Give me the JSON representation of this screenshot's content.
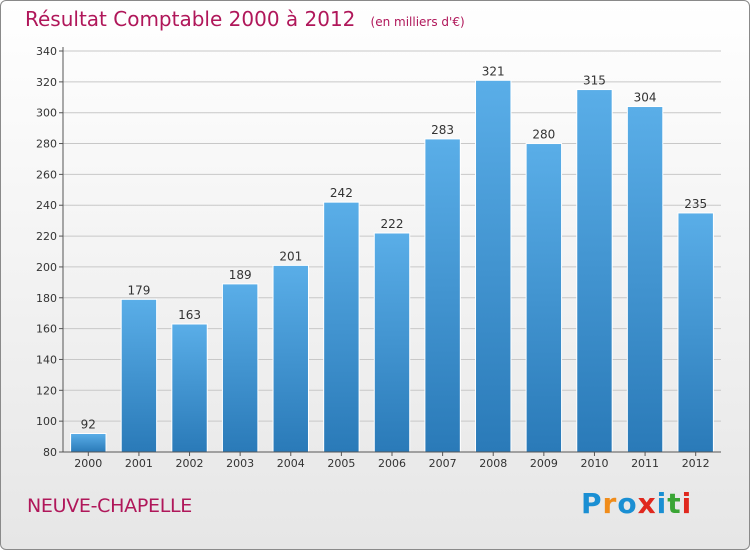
{
  "header": {
    "title": "Résultat Comptable 2000 à 2012",
    "unit": "(en milliers d'€)"
  },
  "footer": {
    "commune": "NEUVE-CHAPELLE",
    "logo": [
      "P",
      "r",
      "o",
      "x",
      "i",
      "t",
      "i"
    ],
    "logo_colors": [
      "#1a8fd3",
      "#f08c1a",
      "#1a8fd3",
      "#e0281e",
      "#1a8fd3",
      "#3aa535",
      "#e0281e"
    ]
  },
  "colors": {
    "bar_top": "#5aaee8",
    "bar_bottom": "#2a7ab8",
    "grid": "#c8c8c8",
    "axis": "#555555"
  },
  "chart_data": {
    "type": "bar",
    "title": "Résultat Comptable 2000 à 2012",
    "subtitle": "(en milliers d'€)",
    "categories": [
      "2000",
      "2001",
      "2002",
      "2003",
      "2004",
      "2005",
      "2006",
      "2007",
      "2008",
      "2009",
      "2010",
      "2011",
      "2012"
    ],
    "values": [
      92,
      179,
      163,
      189,
      201,
      242,
      222,
      283,
      321,
      280,
      315,
      304,
      235
    ],
    "ylim": [
      80,
      340
    ],
    "yticks": [
      80,
      100,
      120,
      140,
      160,
      180,
      200,
      220,
      240,
      260,
      280,
      300,
      320,
      340
    ],
    "grid": true
  }
}
